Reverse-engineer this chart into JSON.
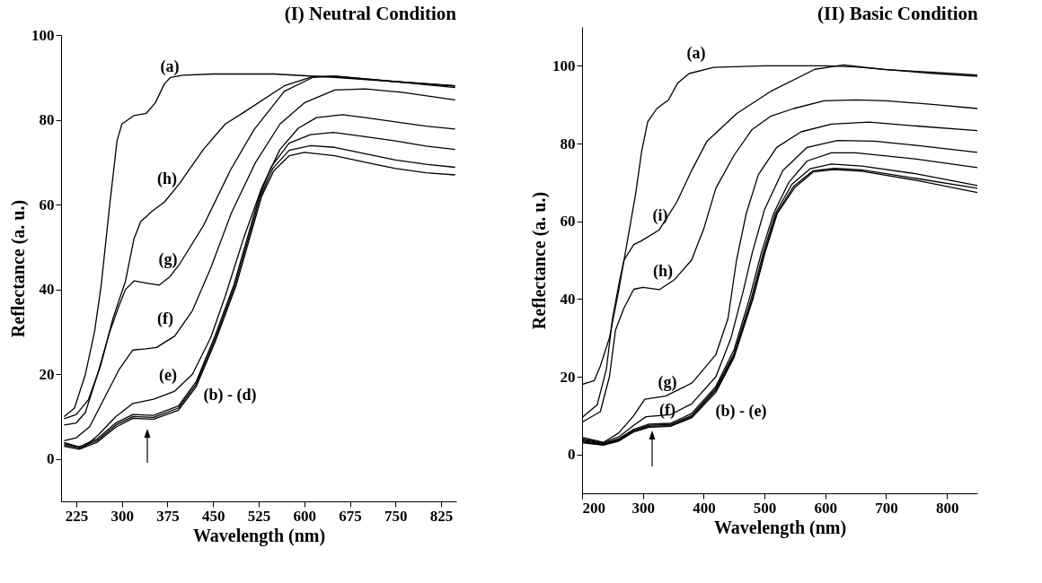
{
  "chart_data": [
    {
      "type": "line",
      "title": "(I) Neutral Condition",
      "xlabel": "Wavelength (nm)",
      "ylabel": "Reflectance (a. u.)",
      "xlim": [
        200,
        850
      ],
      "ylim": [
        -10,
        100
      ],
      "xticks": [
        225,
        300,
        375,
        450,
        525,
        600,
        675,
        750,
        825
      ],
      "yticks": [
        0,
        20,
        40,
        60,
        80,
        100
      ],
      "series": [
        {
          "color": "#000000",
          "x": [
            205,
            222,
            240,
            255,
            266,
            280,
            292,
            300,
            320,
            340,
            355,
            370,
            380,
            400,
            450,
            550,
            650,
            750,
            848
          ],
          "values": [
            10,
            12,
            20,
            30,
            41,
            60,
            75,
            79,
            81,
            81.5,
            84,
            88.5,
            90,
            90.5,
            90.8,
            90.8,
            90,
            89,
            87.6
          ]
        },
        {
          "color": "#000000",
          "x": [
            205,
            230,
            260,
            290,
            318,
            352,
            393,
            422,
            453,
            488,
            510,
            530,
            550,
            575,
            600,
            650,
            700,
            750,
            800,
            848
          ],
          "values": [
            3,
            2.3,
            4,
            7.5,
            9.6,
            9.4,
            11.5,
            17,
            27.5,
            41,
            52,
            62,
            68,
            71.5,
            72.3,
            71.5,
            70,
            68.5,
            67.5,
            67
          ]
        },
        {
          "color": "#000000",
          "x": [
            205,
            230,
            260,
            290,
            318,
            352,
            393,
            422,
            453,
            486,
            508,
            528,
            548,
            575,
            610,
            650,
            700,
            750,
            800,
            848
          ],
          "values": [
            3.3,
            2.6,
            4.4,
            8,
            10,
            9.8,
            12,
            17.6,
            28.2,
            41,
            52,
            62,
            68.5,
            72.8,
            73.9,
            73.5,
            72,
            70.5,
            69.5,
            68.8
          ]
        },
        {
          "color": "#000000",
          "x": [
            205,
            230,
            260,
            290,
            318,
            352,
            393,
            422,
            453,
            484,
            506,
            526,
            546,
            575,
            610,
            648,
            700,
            750,
            800,
            848
          ],
          "values": [
            3.6,
            2.9,
            4.8,
            8.5,
            10.5,
            10.3,
            12.5,
            18.2,
            29,
            41,
            52,
            62,
            69,
            74.5,
            76.5,
            77,
            76,
            75,
            73.8,
            73
          ]
        },
        {
          "color": "#000000",
          "x": [
            205,
            235,
            260,
            290,
            318,
            352,
            387,
            416,
            446,
            470,
            500,
            530,
            560,
            590,
            620,
            663,
            700,
            750,
            800,
            848
          ],
          "values": [
            3.9,
            2.6,
            5.5,
            10,
            13.1,
            14.1,
            16,
            20,
            28.6,
            38.4,
            52,
            64,
            73,
            78,
            80.5,
            81.2,
            80.5,
            79.5,
            78.5,
            77.8
          ]
        },
        {
          "color": "#000000",
          "x": [
            205,
            225,
            247,
            270,
            295,
            318,
            340,
            357,
            387,
            416,
            446,
            480,
            520,
            560,
            600,
            650,
            700,
            760,
            848
          ],
          "values": [
            4.3,
            5,
            7.6,
            14,
            21,
            25.7,
            26,
            26.3,
            29,
            35,
            45,
            58,
            70,
            79,
            84,
            87,
            87.3,
            86.5,
            84.7
          ]
        },
        {
          "color": "#000000",
          "x": [
            205,
            225,
            240,
            260,
            280,
            295,
            306,
            320,
            340,
            361,
            379,
            395,
            434,
            478,
            517,
            567,
            614,
            650,
            750,
            848
          ],
          "values": [
            8,
            8.5,
            11,
            20,
            30,
            36,
            40,
            42,
            41.5,
            41,
            43,
            46,
            55,
            68,
            77.6,
            86.7,
            90,
            90.3,
            89,
            88
          ]
        },
        {
          "color": "#000000",
          "x": [
            205,
            225,
            245,
            265,
            285,
            306,
            320,
            331,
            351,
            370,
            395,
            434,
            470,
            503,
            567,
            614,
            650,
            750,
            848
          ],
          "values": [
            9.5,
            10.5,
            14,
            22,
            33,
            42,
            52,
            56,
            58.6,
            60.6,
            65,
            73,
            79,
            82,
            88,
            90.2,
            90.3,
            89,
            88
          ]
        }
      ],
      "annotations": [
        "(a)",
        "(h)",
        "(g)",
        "(f)",
        "(e)",
        "(b) - (d)"
      ]
    },
    {
      "type": "line",
      "title": "(II) Basic Condition",
      "xlabel": "Wavelength (nm)",
      "ylabel": "Reflectance (a. u.)",
      "xlim": [
        200,
        850
      ],
      "ylim": [
        -10,
        110
      ],
      "xticks": [
        200,
        300,
        400,
        500,
        600,
        700,
        800
      ],
      "yticks": [
        0,
        20,
        40,
        60,
        80,
        100
      ],
      "series": [
        {
          "color": "#000000",
          "x": [
            200,
            220,
            230,
            245,
            260,
            269,
            288,
            298,
            308,
            323,
            342,
            357,
            376,
            416,
            500,
            600,
            650,
            700,
            780,
            850
          ],
          "values": [
            18,
            19,
            22.7,
            30,
            42,
            50,
            67,
            78,
            85.6,
            89,
            91.2,
            95.5,
            98,
            99.6,
            100,
            100,
            99.7,
            99,
            98.3,
            97.6
          ]
        },
        {
          "color": "#000000",
          "x": [
            200,
            235,
            260,
            285,
            310,
            345,
            380,
            420,
            450,
            481,
            501,
            521,
            550,
            580,
            615,
            660,
            750,
            850
          ],
          "values": [
            3,
            2.4,
            3.4,
            5.8,
            7,
            7.2,
            9.4,
            16,
            25,
            40,
            52,
            62,
            68.7,
            72.7,
            73.3,
            72.9,
            70.5,
            67.4
          ]
        },
        {
          "color": "#000000",
          "x": [
            200,
            235,
            260,
            285,
            310,
            345,
            380,
            420,
            450,
            480,
            500,
            520,
            548,
            580,
            615,
            660,
            750,
            850
          ],
          "values": [
            3.2,
            2.5,
            3.6,
            6,
            7.2,
            7.4,
            9.7,
            16.5,
            25.5,
            40,
            52,
            62,
            69,
            73,
            73.6,
            73.2,
            71,
            68.5
          ]
        },
        {
          "color": "#000000",
          "x": [
            200,
            235,
            260,
            285,
            310,
            345,
            380,
            420,
            450,
            478,
            498,
            518,
            545,
            575,
            610,
            660,
            750,
            850
          ],
          "values": [
            3.5,
            2.6,
            3.8,
            6.2,
            7.5,
            7.7,
            10,
            17,
            26,
            40,
            52,
            62,
            69.5,
            73.5,
            74.7,
            74.2,
            72.2,
            69.2
          ]
        },
        {
          "color": "#000000",
          "x": [
            200,
            235,
            260,
            285,
            310,
            345,
            380,
            420,
            450,
            475,
            495,
            515,
            540,
            570,
            610,
            650,
            750,
            850
          ],
          "values": [
            3.8,
            2.8,
            4,
            6.5,
            7.8,
            8,
            10.5,
            17.5,
            27,
            40,
            52,
            62,
            70,
            75.5,
            77.6,
            77.6,
            76,
            73.8
          ]
        },
        {
          "color": "#000000",
          "x": [
            200,
            235,
            260,
            285,
            305,
            345,
            380,
            420,
            445,
            465,
            480,
            500,
            530,
            570,
            620,
            680,
            750,
            850
          ],
          "values": [
            4,
            3,
            4.5,
            7.5,
            9.7,
            10.2,
            13,
            20,
            30,
            42,
            52,
            63,
            73,
            79,
            80.8,
            80.6,
            79.5,
            77.7
          ]
        },
        {
          "color": "#000000",
          "x": [
            200,
            235,
            260,
            285,
            303,
            337,
            381,
            420,
            440,
            454,
            470,
            490,
            520,
            560,
            610,
            672,
            750,
            850
          ],
          "values": [
            4.4,
            3.1,
            5.5,
            10,
            14.2,
            15,
            18.4,
            25.7,
            35,
            50,
            62,
            72,
            79,
            83,
            85,
            85.5,
            84.5,
            83.3
          ]
        },
        {
          "color": "#000000",
          "x": [
            200,
            230,
            245,
            255,
            269,
            285,
            300,
            327,
            352,
            380,
            400,
            420,
            450,
            479,
            510,
            548,
            598,
            650,
            700,
            780,
            850
          ],
          "values": [
            8.3,
            11,
            20,
            32,
            37.7,
            42.5,
            43,
            42.4,
            45,
            50,
            58,
            68.5,
            77,
            83.5,
            87,
            89,
            91,
            91.2,
            91,
            90,
            89
          ]
        },
        {
          "color": "#000000",
          "x": [
            200,
            225,
            240,
            250,
            262,
            269,
            285,
            298,
            327,
            356,
            380,
            405,
            455,
            510,
            583,
            630,
            700,
            780,
            850
          ],
          "values": [
            9.5,
            12.8,
            22,
            35,
            45,
            50,
            54,
            55,
            57.8,
            65,
            73,
            80.5,
            87.8,
            93.4,
            99.1,
            100.2,
            99,
            98,
            97.3
          ]
        }
      ],
      "annotations": [
        "(a)",
        "(i)",
        "(h)",
        "(g)",
        "(f)",
        "(b) - (e)"
      ]
    }
  ]
}
